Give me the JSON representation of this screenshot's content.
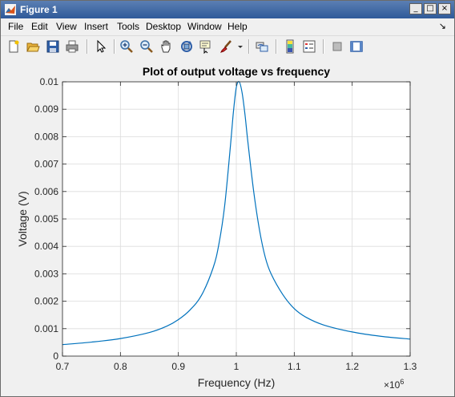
{
  "window": {
    "title": "Figure 1",
    "buttons": {
      "minimize": "_",
      "maximize": "□",
      "close": "×"
    }
  },
  "menu": {
    "items": [
      "File",
      "Edit",
      "View",
      "Insert",
      "Tools",
      "Desktop",
      "Window",
      "Help"
    ],
    "dock_arrow": "↘"
  },
  "toolbar": {
    "icons": [
      "new-figure-icon",
      "open-file-icon",
      "save-icon",
      "print-icon",
      "edit-plot-arrow-icon",
      "zoom-in-icon",
      "zoom-out-icon",
      "pan-hand-icon",
      "rotate-3d-icon",
      "data-cursor-icon",
      "brush-icon",
      "brush-dropdown-icon",
      "link-plot-icon",
      "insert-colorbar-icon",
      "insert-legend-icon",
      "hide-plot-tools-icon",
      "show-plot-tools-icon"
    ]
  },
  "chart_data": {
    "type": "line",
    "title": "Plot of output voltage vs frequency",
    "xlabel": "Frequency (Hz)",
    "ylabel": "Voltage (V)",
    "xlim": [
      700000,
      1300000
    ],
    "ylim": [
      0,
      0.01
    ],
    "x_ticks": [
      "0.7",
      "0.8",
      "0.9",
      "1",
      "1.1",
      "1.2",
      "1.3"
    ],
    "y_ticks": [
      "0",
      "0.001",
      "0.002",
      "0.003",
      "0.004",
      "0.005",
      "0.006",
      "0.007",
      "0.008",
      "0.009",
      "0.01"
    ],
    "x_exponent": "×10",
    "x_exponent_power": "6",
    "grid": true,
    "line_color": "#0072bd",
    "x": [
      700000,
      750000,
      800000,
      850000,
      880000,
      900000,
      920000,
      940000,
      960000,
      970000,
      980000,
      990000,
      995000,
      1000000,
      1005000,
      1010000,
      1015000,
      1020000,
      1030000,
      1040000,
      1050000,
      1060000,
      1080000,
      1100000,
      1120000,
      1150000,
      1200000,
      1250000,
      1300000
    ],
    "values": [
      0.00042,
      0.00051,
      0.00064,
      0.00086,
      0.00109,
      0.00133,
      0.00168,
      0.00222,
      0.00322,
      0.00409,
      0.0055,
      0.0077,
      0.0089,
      0.0098,
      0.01,
      0.0096,
      0.0088,
      0.0078,
      0.006,
      0.0046,
      0.0036,
      0.003,
      0.00225,
      0.00173,
      0.00142,
      0.00114,
      0.00088,
      0.00072,
      0.00062
    ]
  }
}
